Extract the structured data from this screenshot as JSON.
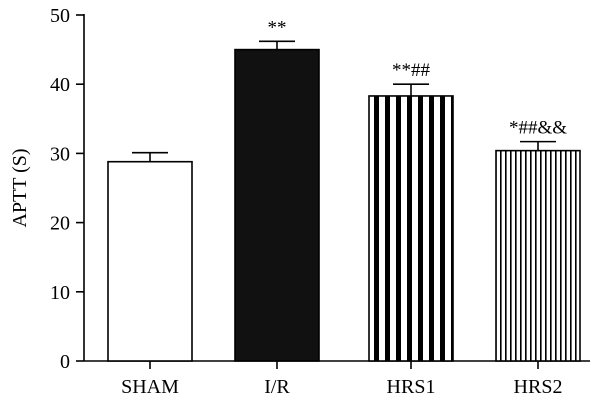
{
  "chart_data": {
    "type": "bar",
    "title": "",
    "xlabel": "",
    "ylabel": "APTT (S)",
    "ylim": [
      0,
      50
    ],
    "yticks": [
      0,
      10,
      20,
      30,
      40,
      50
    ],
    "grid": false,
    "categories": [
      "SHAM",
      "I/R",
      "HRS1",
      "HRS2"
    ],
    "values": [
      28.8,
      45.0,
      38.3,
      30.4
    ],
    "errors": [
      1.3,
      1.2,
      1.7,
      1.3
    ],
    "annotations": [
      "",
      "**",
      "**##",
      "*##&&"
    ],
    "fills": [
      "white",
      "solid-black",
      "wide-vertical-stripes",
      "narrow-vertical-stripes"
    ],
    "colors": {
      "stroke": "#000000",
      "fill_dark": "#111111",
      "background": "#ffffff"
    }
  }
}
